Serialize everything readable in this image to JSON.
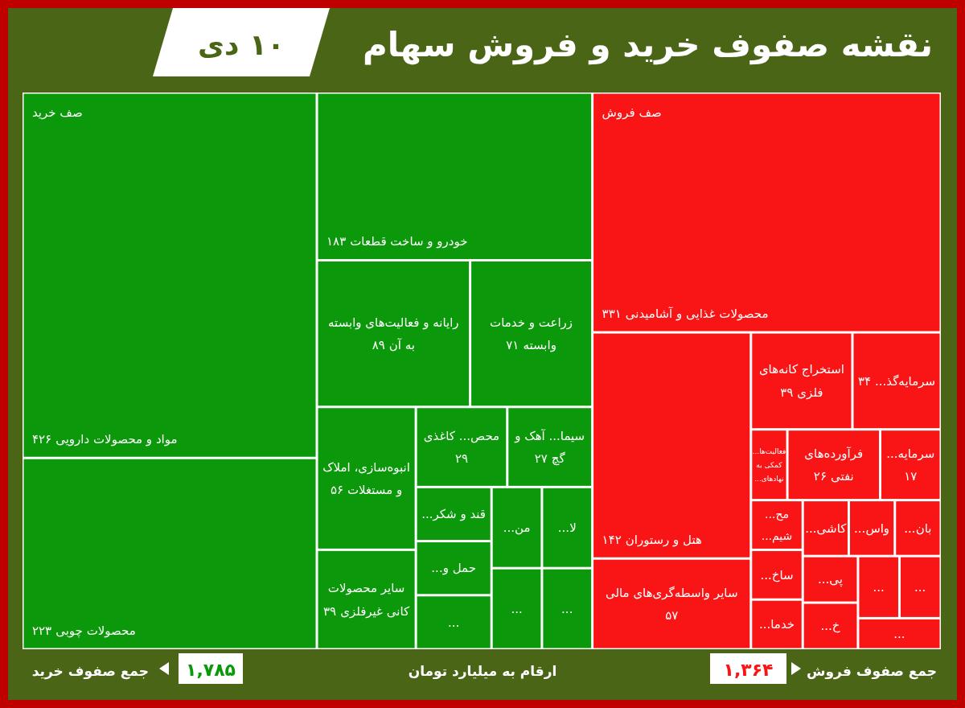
{
  "chart_data": [
    {
      "type": "other",
      "title": "نقشه صفوف خرید و فروش سهام",
      "subtitle": "۱۰ دی",
      "data_labels": true,
      "annotations": [
        "جمع صفوف خرید",
        "ارقام به میلیارد تومان"
      ],
      "totals": [
        "۱,۷۸۵"
      ],
      "categories": [
        "مواد و محصولات دارویی",
        "محصولات چوبی",
        "خودرو و ساخت قطعات",
        "رایانه و فعالیت‌های وابسته به آن",
        "زراعت و خدمات وابسته",
        "انبوه‌سازی، املاک و مستغلات",
        "سایر محصولات کانی غیرفلزی",
        "محص... کاغذی",
        "سیما... آهک و گچ",
        "قند و شکر...",
        "حمل و...",
        "...",
        "من...",
        "لا...",
        "...",
        "..."
      ],
      "series": [
        {
          "name": "صف خرید",
          "color": "#0b990b",
          "values": [
            426,
            223,
            183,
            89,
            71,
            56,
            39,
            29,
            27,
            null,
            null,
            null,
            null,
            null,
            null,
            null
          ],
          "value_labels": [
            "۴۲۶",
            "۲۲۳",
            "۱۸۳",
            "۸۹",
            "۷۱",
            "۵۶",
            "۳۹",
            "۲۹",
            "۲۷",
            null,
            null,
            null,
            null,
            null,
            null,
            null
          ]
        }
      ]
    },
    {
      "type": "other",
      "data_labels": true,
      "annotations": [
        "جمع صفوف فروش"
      ],
      "totals": [
        "۱,۳۶۴"
      ],
      "categories": [
        "محصولات غذایی و آشامیدنی",
        "هتل و رستوران",
        "سایر واسطه‌گری‌های مالی",
        "استخراج کانه‌های فلزی",
        "سرمایه‌گذ...",
        "فعالیت‌ها... کمکی به نهادهای...",
        "فرآورده‌های نفتی",
        "سرمایه...",
        "مح... شیم...",
        "ساخ...",
        "خدما...",
        "کاشی...",
        "واس...",
        "بان...",
        "پی...",
        "خ...",
        "...",
        "...",
        "..."
      ],
      "series": [
        {
          "name": "صف فروش",
          "color": "#f91515",
          "values": [
            331,
            142,
            57,
            39,
            34,
            null,
            26,
            17,
            null,
            null,
            null,
            null,
            null,
            null,
            null,
            null,
            null,
            null,
            null
          ],
          "value_labels": [
            "۳۳۱",
            "۱۴۲",
            "۵۷",
            "۳۹",
            "۳۴",
            null,
            "۲۶",
            "۱۷",
            null,
            null,
            null,
            null,
            null,
            null,
            null,
            null,
            null,
            null,
            null
          ]
        }
      ]
    }
  ]
}
